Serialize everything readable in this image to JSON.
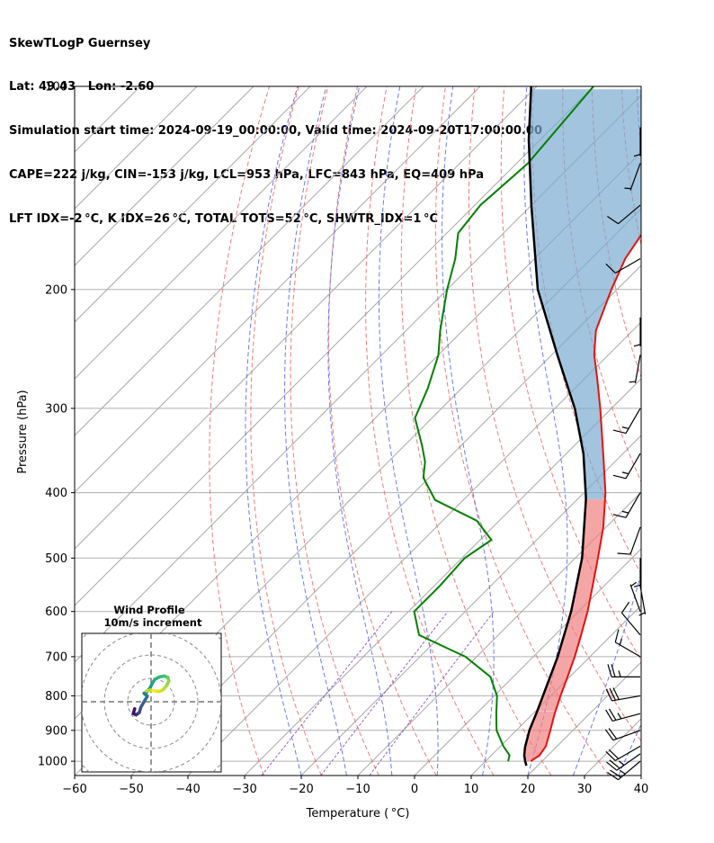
{
  "header": {
    "line1": "SkewTLogP Guernsey",
    "line2": "Lat: 49.43   Lon: -2.60",
    "line3": "Simulation start time: 2024-09-19_00:00:00, Valid time: 2024-09-20T17:00:00.00",
    "line4": "CAPE=222 j/kg, CIN=-153 j/kg, LCL=953 hPa, LFC=843 hPa, EQ=409 hPa",
    "line5": "LFT IDX=-2 °C, K IDX=26 °C, TOTAL TOTS=52 °C, SHWTR_IDX=1 °C"
  },
  "chart_data": {
    "type": "skewt-logp",
    "xlabel": "Temperature ( °C)",
    "ylabel": "Pressure (hPa)",
    "xlim": [
      -60,
      40
    ],
    "ylim": [
      1050,
      100
    ],
    "xticks": [
      -60,
      -50,
      -40,
      -30,
      -20,
      -10,
      0,
      10,
      20,
      30,
      40
    ],
    "yticks": [
      100,
      200,
      300,
      400,
      500,
      600,
      700,
      800,
      900,
      1000
    ],
    "skew_note": "isotherms skewed 45 degrees",
    "colors": {
      "temperature": "#e8110f",
      "dewpoint": "#008000",
      "parcel": "#000000",
      "cape_fill": "#7aabd0",
      "cin_fill": "#f08080",
      "dry_adiabat": "#f26b6b",
      "moist_adiabat": "#5b6cf0",
      "mixing_ratio": "#8a4fc7"
    },
    "temperature": [
      {
        "p": 1000,
        "t": 18.0
      },
      {
        "p": 980,
        "t": 18.5
      },
      {
        "p": 950,
        "t": 18.0
      },
      {
        "p": 900,
        "t": 16.0
      },
      {
        "p": 850,
        "t": 13.8
      },
      {
        "p": 800,
        "t": 11.7
      },
      {
        "p": 750,
        "t": 9.6
      },
      {
        "p": 700,
        "t": 7.3
      },
      {
        "p": 650,
        "t": 4.6
      },
      {
        "p": 600,
        "t": 1.6
      },
      {
        "p": 550,
        "t": -2.0
      },
      {
        "p": 500,
        "t": -6.0
      },
      {
        "p": 450,
        "t": -10.5
      },
      {
        "p": 400,
        "t": -16.2
      },
      {
        "p": 350,
        "t": -23.5
      },
      {
        "p": 300,
        "t": -32.0
      },
      {
        "p": 270,
        "t": -38.0
      },
      {
        "p": 250,
        "t": -42.5
      },
      {
        "p": 230,
        "t": -46.5
      },
      {
        "p": 200,
        "t": -51.0
      },
      {
        "p": 180,
        "t": -54.0
      },
      {
        "p": 160,
        "t": -56.0
      },
      {
        "p": 140,
        "t": -58.5
      },
      {
        "p": 120,
        "t": -61.0
      },
      {
        "p": 100,
        "t": -63.5
      }
    ],
    "dewpoint": [
      {
        "p": 1000,
        "t": 14.0
      },
      {
        "p": 980,
        "t": 13.2
      },
      {
        "p": 950,
        "t": 10.5
      },
      {
        "p": 900,
        "t": 6.5
      },
      {
        "p": 850,
        "t": 3.5
      },
      {
        "p": 800,
        "t": 0.5
      },
      {
        "p": 750,
        "t": -4.0
      },
      {
        "p": 700,
        "t": -12.0
      },
      {
        "p": 650,
        "t": -24.0
      },
      {
        "p": 600,
        "t": -29.0
      },
      {
        "p": 550,
        "t": -29.0
      },
      {
        "p": 500,
        "t": -29.5
      },
      {
        "p": 470,
        "t": -28.0
      },
      {
        "p": 440,
        "t": -34.0
      },
      {
        "p": 410,
        "t": -45.0
      },
      {
        "p": 380,
        "t": -51.0
      },
      {
        "p": 360,
        "t": -53.5
      },
      {
        "p": 340,
        "t": -57.0
      },
      {
        "p": 310,
        "t": -63.0
      },
      {
        "p": 280,
        "t": -66.0
      },
      {
        "p": 250,
        "t": -70.0
      },
      {
        "p": 230,
        "t": -74.0
      },
      {
        "p": 200,
        "t": -80.0
      },
      {
        "p": 180,
        "t": -84.0
      },
      {
        "p": 165,
        "t": -88.0
      },
      {
        "p": 150,
        "t": -89.0
      },
      {
        "p": 130,
        "t": -88.0
      },
      {
        "p": 100,
        "t": -90.0
      }
    ],
    "parcel": [
      {
        "p": 1015,
        "t": 18.0
      },
      {
        "p": 1000,
        "t": 17.0
      },
      {
        "p": 980,
        "t": 15.8
      },
      {
        "p": 953,
        "t": 14.5
      },
      {
        "p": 900,
        "t": 12.3
      },
      {
        "p": 843,
        "t": 10.3
      },
      {
        "p": 800,
        "t": 8.6
      },
      {
        "p": 700,
        "t": 4.3
      },
      {
        "p": 600,
        "t": -1.3
      },
      {
        "p": 500,
        "t": -8.8
      },
      {
        "p": 409,
        "t": -18.5
      },
      {
        "p": 400,
        "t": -19.7
      },
      {
        "p": 350,
        "t": -27.0
      },
      {
        "p": 300,
        "t": -36.5
      },
      {
        "p": 250,
        "t": -49.0
      },
      {
        "p": 200,
        "t": -64.0
      },
      {
        "p": 150,
        "t": -80.0
      },
      {
        "p": 120,
        "t": -92.0
      },
      {
        "p": 100,
        "t": -101.0
      }
    ],
    "wind_barbs": [
      {
        "p": 1000,
        "speed_kt": 25,
        "dir_deg": 230
      },
      {
        "p": 975,
        "speed_kt": 25,
        "dir_deg": 235
      },
      {
        "p": 950,
        "speed_kt": 20,
        "dir_deg": 240
      },
      {
        "p": 900,
        "speed_kt": 20,
        "dir_deg": 250
      },
      {
        "p": 850,
        "speed_kt": 25,
        "dir_deg": 255
      },
      {
        "p": 800,
        "speed_kt": 30,
        "dir_deg": 260
      },
      {
        "p": 750,
        "speed_kt": 25,
        "dir_deg": 270
      },
      {
        "p": 700,
        "speed_kt": 15,
        "dir_deg": 300
      },
      {
        "p": 650,
        "speed_kt": 10,
        "dir_deg": 320
      },
      {
        "p": 600,
        "speed_kt": 5,
        "dir_deg": 340
      },
      {
        "p": 550,
        "speed_kt": 5,
        "dir_deg": 170
      },
      {
        "p": 500,
        "speed_kt": 5,
        "dir_deg": 180
      },
      {
        "p": 450,
        "speed_kt": 10,
        "dir_deg": 200
      },
      {
        "p": 400,
        "speed_kt": 15,
        "dir_deg": 210
      },
      {
        "p": 350,
        "speed_kt": 15,
        "dir_deg": 210
      },
      {
        "p": 300,
        "speed_kt": 15,
        "dir_deg": 210
      },
      {
        "p": 250,
        "speed_kt": 5,
        "dir_deg": 190
      },
      {
        "p": 220,
        "speed_kt": 5,
        "dir_deg": 180
      },
      {
        "p": 180,
        "speed_kt": 10,
        "dir_deg": 240
      },
      {
        "p": 150,
        "speed_kt": 10,
        "dir_deg": 230
      },
      {
        "p": 130,
        "speed_kt": 5,
        "dir_deg": 200
      },
      {
        "p": 115,
        "speed_kt": 5,
        "dir_deg": 180
      }
    ],
    "hodograph": {
      "title_line1": "Wind Profile",
      "title_line2": "10m/s increment",
      "rings_ms": [
        10,
        20,
        30,
        40
      ],
      "points": [
        {
          "u": -3.5,
          "v": -1.5
        },
        {
          "u": -3.8,
          "v": -2.5
        },
        {
          "u": -3.2,
          "v": -2.8
        },
        {
          "u": -2.5,
          "v": -2.3
        },
        {
          "u": -2.2,
          "v": -1.2
        },
        {
          "u": -1.5,
          "v": 0.0
        },
        {
          "u": -0.8,
          "v": 1.2
        },
        {
          "u": -1.5,
          "v": 1.8
        },
        {
          "u": -1.0,
          "v": 2.0
        },
        {
          "u": -0.2,
          "v": 3.0
        },
        {
          "u": 0.3,
          "v": 4.0
        },
        {
          "u": 0.8,
          "v": 4.8
        },
        {
          "u": 1.8,
          "v": 5.3
        },
        {
          "u": 2.8,
          "v": 5.5
        },
        {
          "u": 3.6,
          "v": 5.2
        },
        {
          "u": 3.8,
          "v": 4.4
        },
        {
          "u": 3.3,
          "v": 3.4
        },
        {
          "u": 2.6,
          "v": 2.6
        },
        {
          "u": 1.8,
          "v": 2.2
        },
        {
          "u": 0.8,
          "v": 2.3
        },
        {
          "u": -0.2,
          "v": 2.5
        },
        {
          "u": -1.0,
          "v": 2.3
        }
      ]
    }
  }
}
